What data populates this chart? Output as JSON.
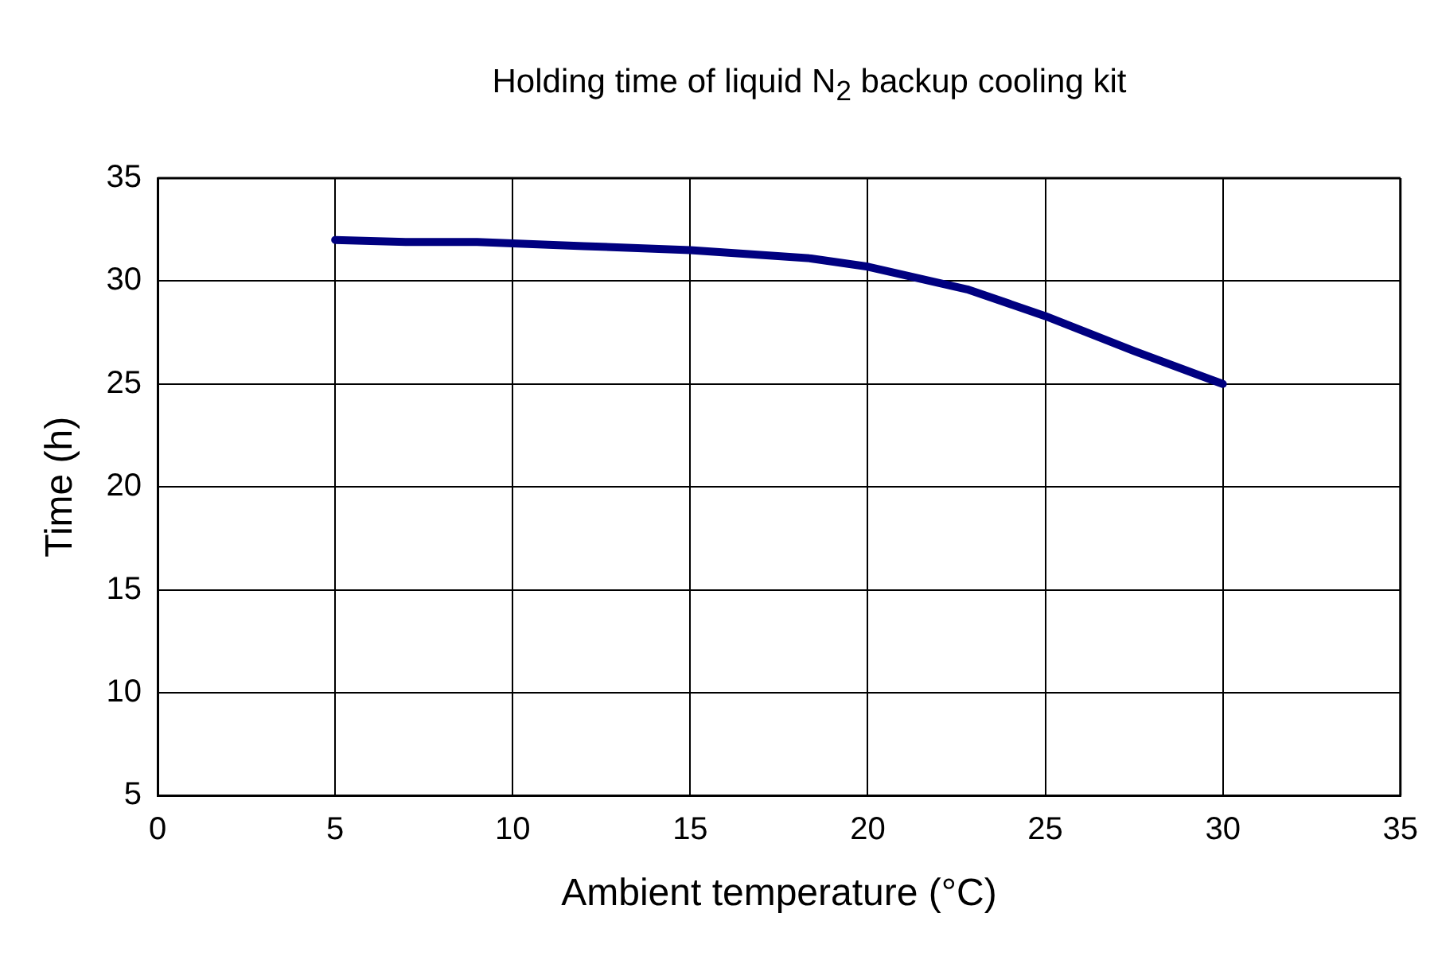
{
  "chart_data": {
    "type": "line",
    "title": "Holding time of liquid N$_{2}$ backup cooling kit",
    "xlabel": "Ambient temperature (°C)",
    "ylabel": "Time (h)",
    "x": [
      5,
      7,
      9,
      12,
      15,
      18.4,
      20,
      22.8,
      25,
      27.5,
      30
    ],
    "series": [
      {
        "color": "#000080",
        "values": [
          32.0,
          31.9,
          31.9,
          31.7,
          31.5,
          31.1,
          30.7,
          29.6,
          28.3,
          26.6,
          25.0
        ]
      }
    ],
    "xlim": [
      0,
      35
    ],
    "xticks": [
      0,
      5,
      10,
      15,
      20,
      25,
      30,
      35
    ],
    "ylim": [
      5,
      35
    ],
    "yticks": [
      5,
      10,
      15,
      20,
      25,
      30,
      35
    ],
    "grid": true,
    "legend": false,
    "marker": "none",
    "line_style": "solid"
  }
}
